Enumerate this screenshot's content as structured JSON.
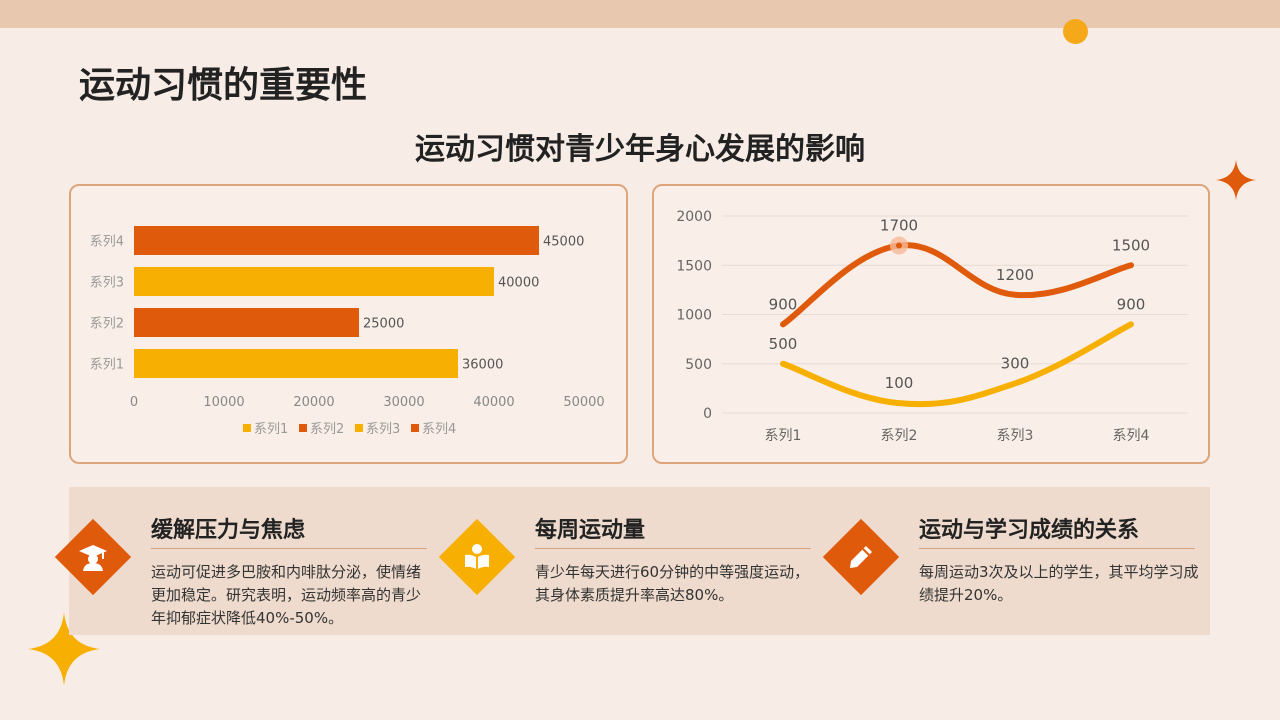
{
  "page": {
    "title": "运动习惯的重要性",
    "subtitle": "运动习惯对青少年身心发展的影响"
  },
  "colors": {
    "background": "#f8ede6",
    "band": "#e8c9b0",
    "orange": "#e05a0c",
    "yellow": "#f7b002",
    "panel_border": "#dba57e",
    "info_band": "#eedbcd"
  },
  "chart_data": [
    {
      "type": "bar",
      "orientation": "horizontal",
      "categories": [
        "系列1",
        "系列2",
        "系列3",
        "系列4"
      ],
      "values": [
        36000,
        25000,
        40000,
        45000
      ],
      "bar_colors": [
        "#f7b002",
        "#e05a0c",
        "#f7b002",
        "#e05a0c"
      ],
      "xlim": [
        0,
        50000
      ],
      "x_ticks": [
        0,
        10000,
        20000,
        30000,
        40000,
        50000
      ],
      "data_labels": true,
      "legend": [
        "系列1",
        "系列2",
        "系列3",
        "系列4"
      ],
      "legend_position": "bottom",
      "grid": false
    },
    {
      "type": "line",
      "smooth": true,
      "categories": [
        "系列1",
        "系列2",
        "系列3",
        "系列4"
      ],
      "series": [
        {
          "values": [
            900,
            1700,
            1200,
            1500
          ],
          "color": "#e05a0c"
        },
        {
          "values": [
            500,
            100,
            300,
            900
          ],
          "color": "#f7b002"
        }
      ],
      "ylim": [
        0,
        2000
      ],
      "y_ticks": [
        0,
        500,
        1000,
        1500,
        2000
      ],
      "data_labels": true,
      "grid": true,
      "highlight_point": {
        "series": 0,
        "category": "系列2"
      }
    }
  ],
  "cards": [
    {
      "title": "缓解压力与焦虑",
      "text": "运动可促进多巴胺和内啡肽分泌，使情绪更加稳定。研究表明，运动频率高的青少年抑郁症状降低40%-50%。",
      "icon": "graduate-icon",
      "color": "#e05a0c"
    },
    {
      "title": "每周运动量",
      "text": "青少年每天进行60分钟的中等强度运动，其身体素质提升率高达80%。",
      "icon": "reading-icon",
      "color": "#f7b002"
    },
    {
      "title": "运动与学习成绩的关系",
      "text": "每周运动3次及以上的学生，其平均学习成绩提升20%。",
      "icon": "pencil-icon",
      "color": "#e05a0c"
    }
  ]
}
